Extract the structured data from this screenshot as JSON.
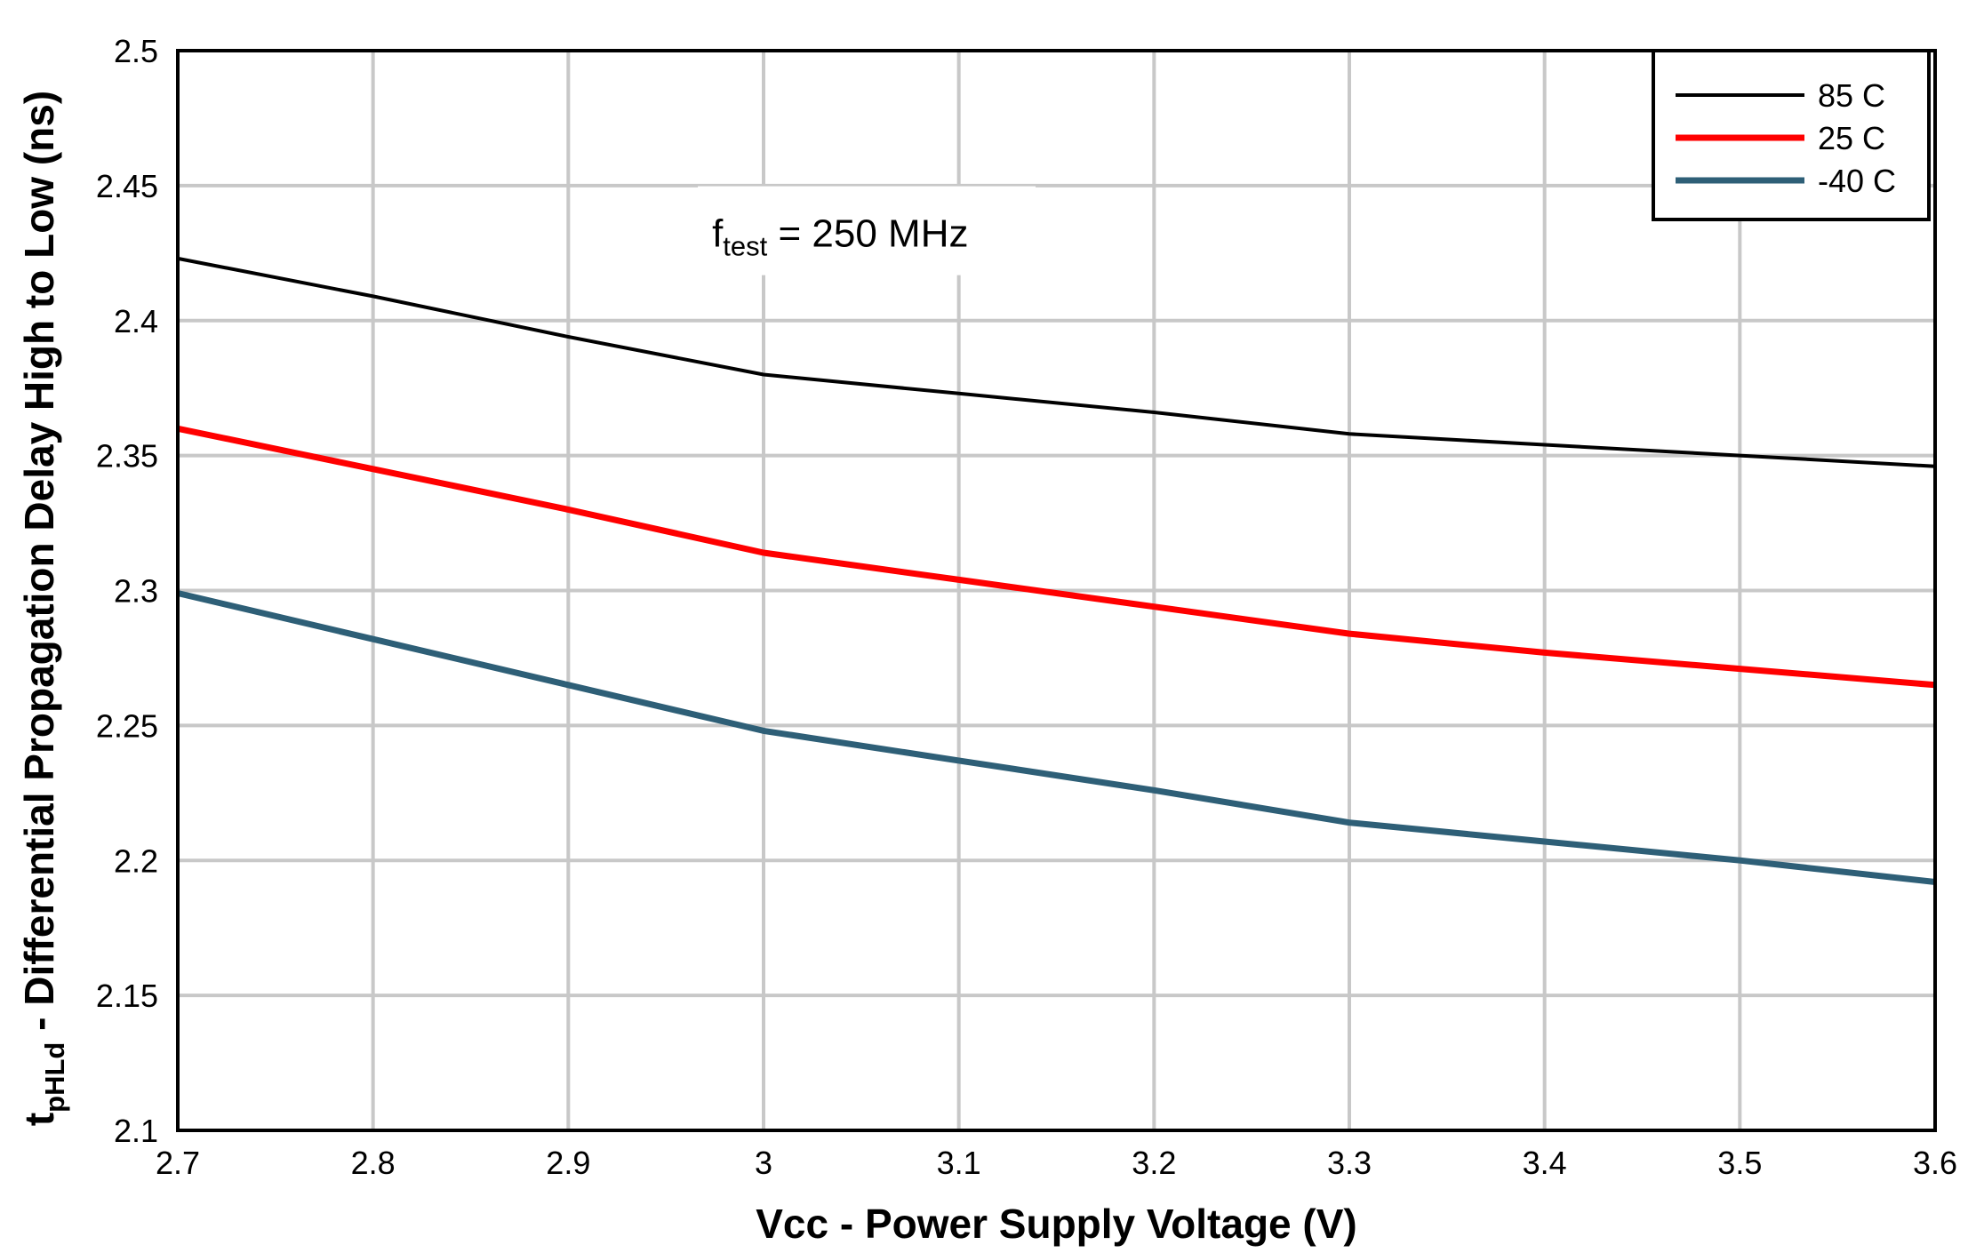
{
  "chart_data": {
    "type": "line",
    "title": "",
    "xlabel": "Vcc - Power Supply Voltage  (V)",
    "ylabel_main": "t",
    "ylabel_subscript": "pHLd",
    "ylabel_rest": " - Differential Propagation Delay High to Low (ns)",
    "xlim": [
      2.7,
      3.6
    ],
    "ylim": [
      2.1,
      2.5
    ],
    "x_ticks": [
      "2.7",
      "2.8",
      "2.9",
      "3",
      "3.1",
      "3.2",
      "3.3",
      "3.4",
      "3.5",
      "3.6"
    ],
    "y_ticks": [
      "2.1",
      "2.15",
      "2.2",
      "2.25",
      "2.3",
      "2.35",
      "2.4",
      "2.45",
      "2.5"
    ],
    "grid": true,
    "legend_position": "top-right",
    "annotation": {
      "main": "f",
      "subscript": "test",
      "rest": " = 250 MHz"
    },
    "series": [
      {
        "name": "85 C",
        "color": "#000000",
        "x": [
          2.7,
          2.8,
          2.9,
          3.0,
          3.1,
          3.2,
          3.3,
          3.4,
          3.5,
          3.6
        ],
        "values": [
          2.423,
          2.409,
          2.394,
          2.38,
          2.373,
          2.366,
          2.358,
          2.354,
          2.35,
          2.346
        ]
      },
      {
        "name": "25 C",
        "color": "#ff0000",
        "x": [
          2.7,
          2.8,
          2.9,
          3.0,
          3.1,
          3.2,
          3.3,
          3.4,
          3.5,
          3.6
        ],
        "values": [
          2.36,
          2.345,
          2.33,
          2.314,
          2.304,
          2.294,
          2.284,
          2.277,
          2.271,
          2.265
        ]
      },
      {
        "name": "-40 C",
        "color": "#2e5f77",
        "x": [
          2.7,
          2.8,
          2.9,
          3.0,
          3.1,
          3.2,
          3.3,
          3.4,
          3.5,
          3.6
        ],
        "values": [
          2.299,
          2.282,
          2.265,
          2.248,
          2.237,
          2.226,
          2.214,
          2.207,
          2.2,
          2.192
        ]
      }
    ]
  }
}
